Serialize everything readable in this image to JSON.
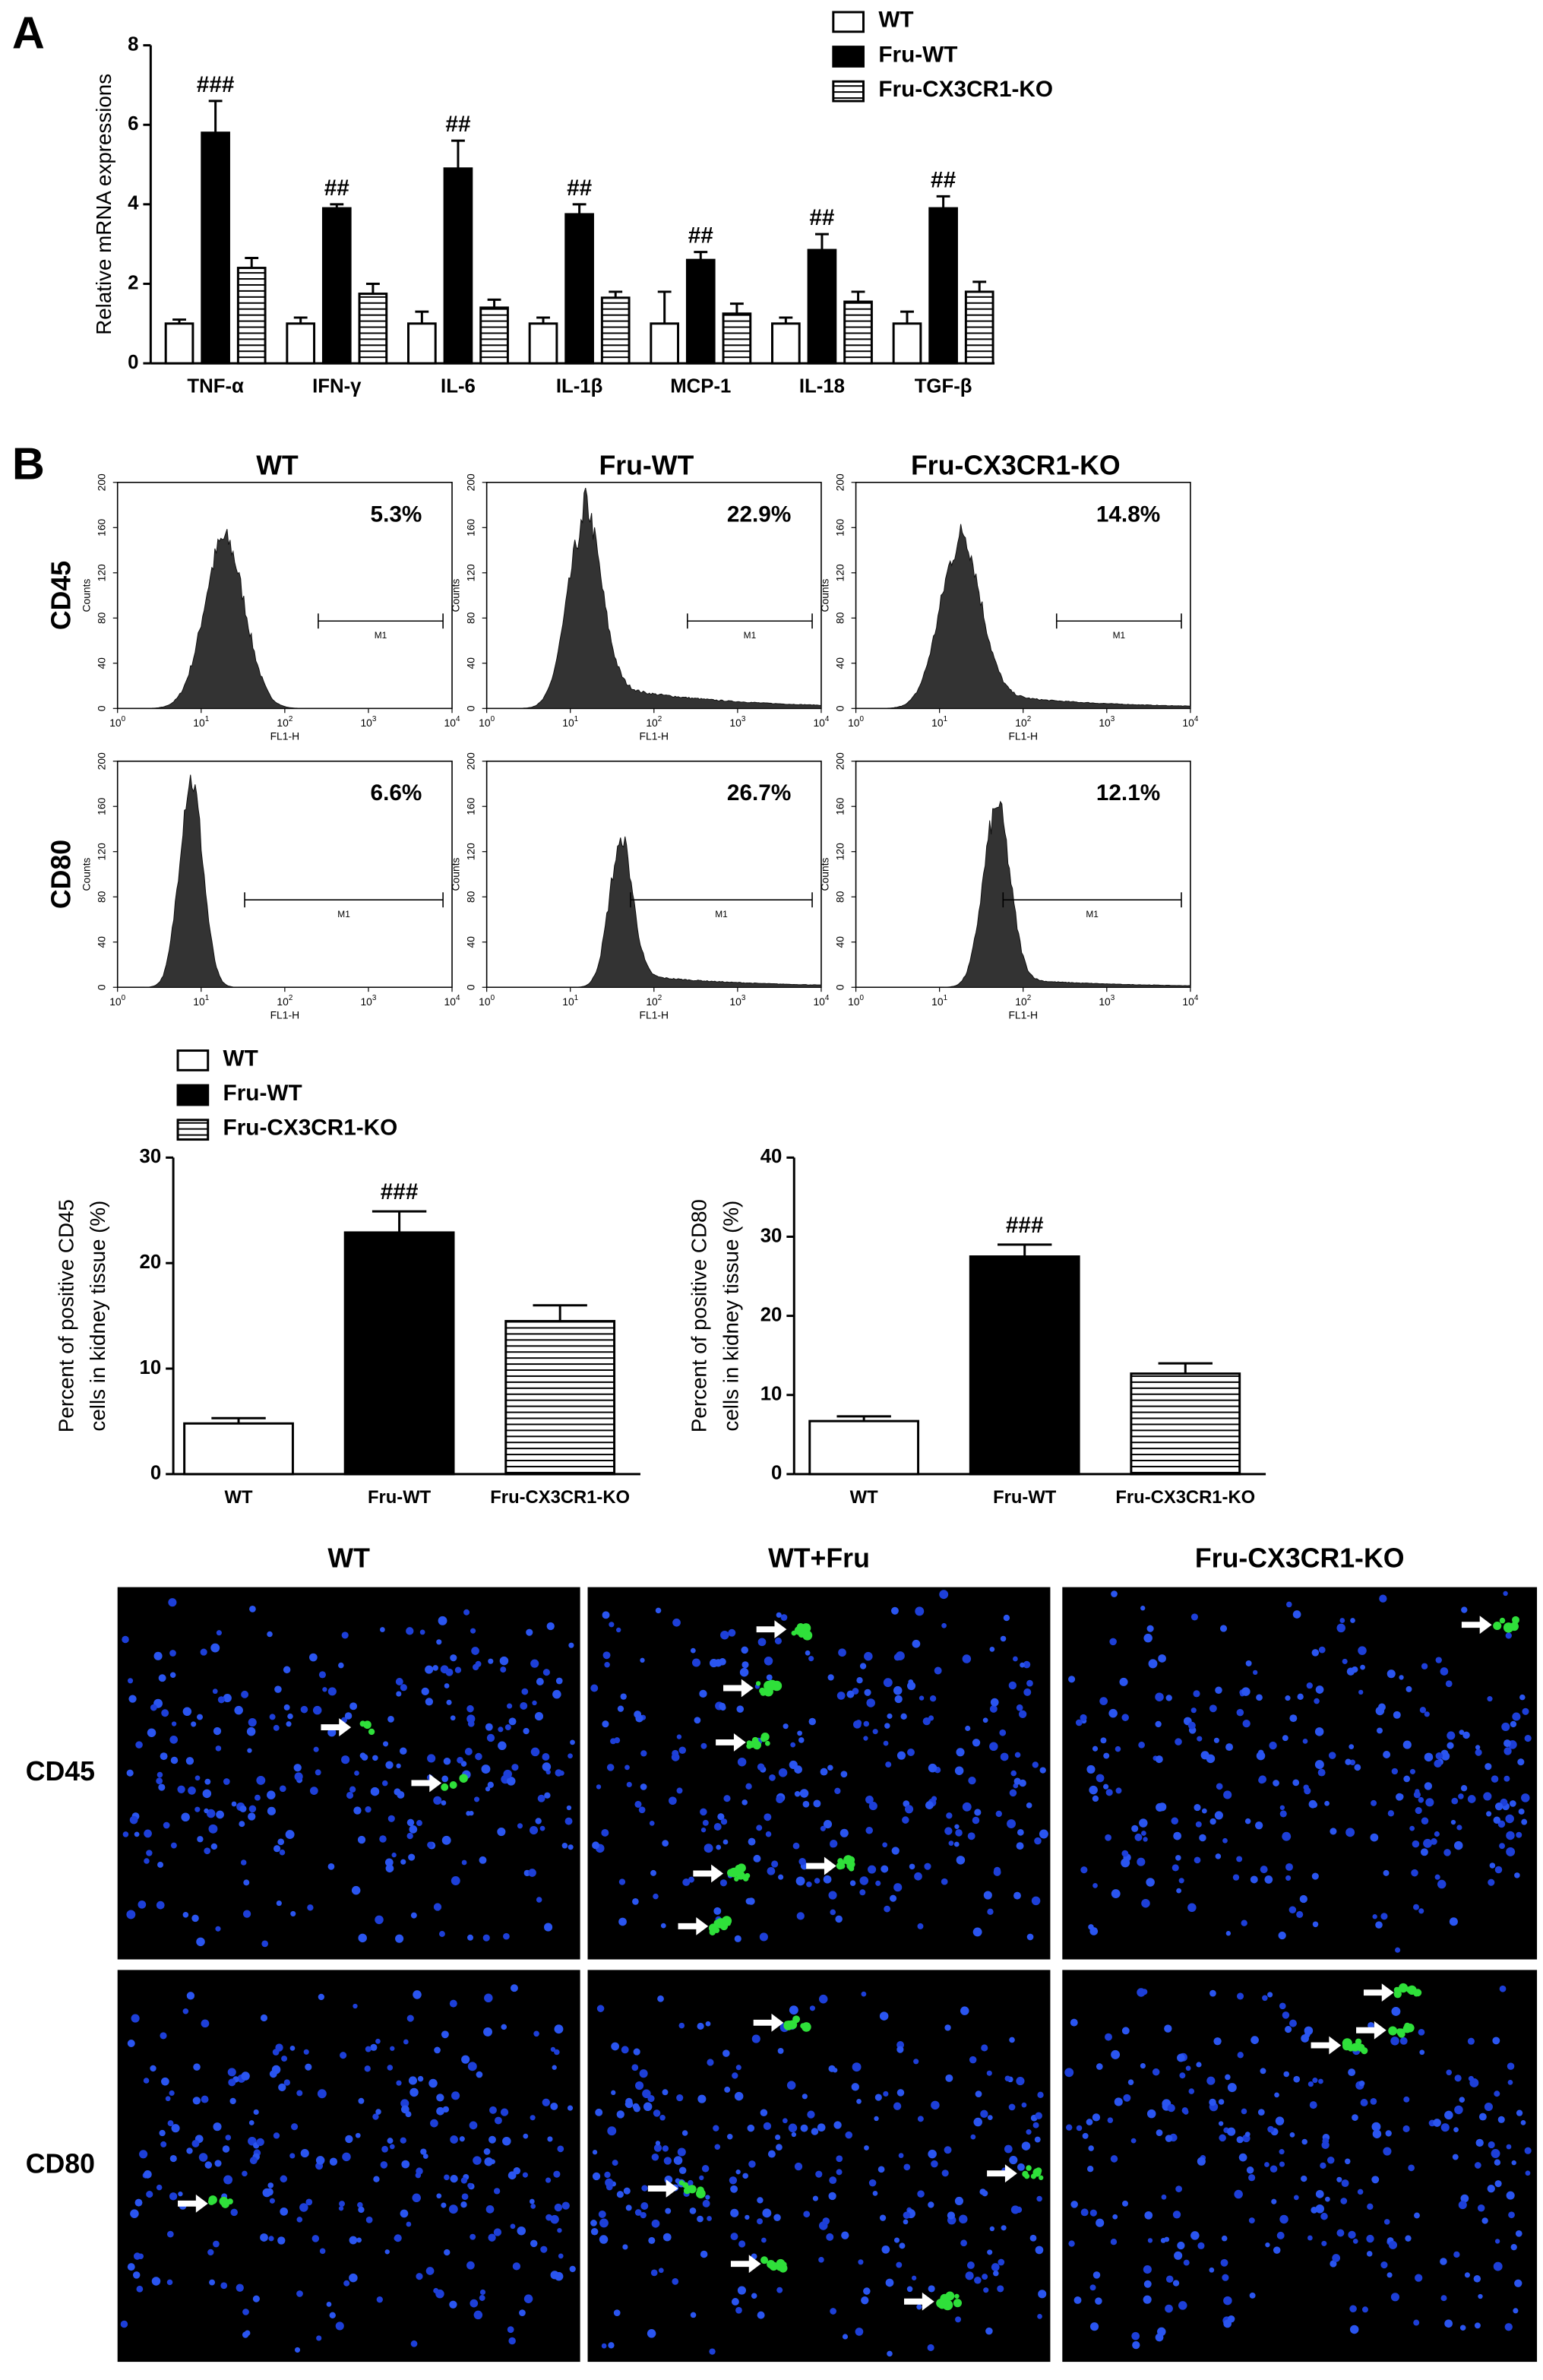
{
  "panel_labels": [
    "A",
    "B"
  ],
  "chart_data": [
    {
      "type": "grouped-bar",
      "ylabel": "Relative mRNA expressions",
      "categories": [
        "TNF-α",
        "IFN-γ",
        "IL-6",
        "IL-1β",
        "MCP-1",
        "IL-18",
        "TGF-β"
      ],
      "series": [
        {
          "name": "WT",
          "color": "#ffffff",
          "hatch": false,
          "values": [
            1.0,
            1.0,
            1.0,
            1.0,
            1.0,
            1.0,
            1.0
          ],
          "errors": [
            0.1,
            0.15,
            0.3,
            0.15,
            0.8,
            0.15,
            0.3
          ]
        },
        {
          "name": "Fru-WT",
          "color": "#000000",
          "hatch": false,
          "values": [
            5.8,
            3.9,
            4.9,
            3.75,
            2.6,
            2.85,
            3.9
          ],
          "errors": [
            0.8,
            0.1,
            0.7,
            0.25,
            0.2,
            0.4,
            0.3
          ]
        },
        {
          "name": "Fru-CX3CR1-KO",
          "color": "#ffffff",
          "hatch": true,
          "values": [
            2.4,
            1.75,
            1.4,
            1.65,
            1.25,
            1.55,
            1.8
          ],
          "errors": [
            0.25,
            0.25,
            0.2,
            0.15,
            0.25,
            0.25,
            0.25
          ]
        }
      ],
      "annotations": [
        "###",
        "##",
        "##",
        "##",
        "##",
        "##",
        "##"
      ],
      "annotation_series": 1,
      "ylim": [
        0,
        8
      ],
      "yticks": [
        0,
        2,
        4,
        6,
        8
      ],
      "legend": "top-right"
    },
    {
      "type": "bar",
      "ylabel": [
        "Percent of positive CD45",
        "cells in kidney tissue (%)"
      ],
      "categories": [
        "WT",
        "Fru-WT",
        "Fru-CX3CR1-KO"
      ],
      "values": [
        4.8,
        22.9,
        14.5
      ],
      "errors": [
        0.5,
        2.0,
        1.5
      ],
      "colors": [
        "#ffffff",
        "#000000",
        "#ffffff"
      ],
      "hatch": [
        false,
        false,
        true
      ],
      "annotations": [
        null,
        "###",
        null
      ],
      "legend": [
        "WT",
        "Fru-WT",
        "Fru-CX3CR1-KO"
      ],
      "ylim": [
        0,
        30
      ],
      "yticks": [
        0,
        10,
        20,
        30
      ]
    },
    {
      "type": "bar",
      "ylabel": [
        "Percent of positive CD80",
        "cells in kidney tissue (%)"
      ],
      "categories": [
        "WT",
        "Fru-WT",
        "Fru-CX3CR1-KO"
      ],
      "values": [
        6.7,
        27.5,
        12.7
      ],
      "errors": [
        0.6,
        1.5,
        1.3
      ],
      "colors": [
        "#ffffff",
        "#000000",
        "#ffffff"
      ],
      "hatch": [
        false,
        false,
        true
      ],
      "annotations": [
        null,
        "###",
        null
      ],
      "ylim": [
        0,
        40
      ],
      "yticks": [
        0,
        10,
        20,
        30,
        40
      ]
    }
  ],
  "flow": {
    "columns": [
      "WT",
      "Fru-WT",
      "Fru-CX3CR1-KO"
    ],
    "rows": [
      "CD45",
      "CD80"
    ],
    "percentages": [
      [
        "5.3%",
        "22.9%",
        "14.8%"
      ],
      [
        "6.6%",
        "26.7%",
        "12.1%"
      ]
    ],
    "gate_label": "M1",
    "xlabel": "FL1-H",
    "ylabel": "Counts",
    "yticks": [
      0,
      40,
      80,
      120,
      160,
      200
    ],
    "xtick_base": "10",
    "xtick_exponents": [
      0,
      1,
      2,
      3,
      4
    ]
  },
  "microscopy": {
    "columns": [
      "WT",
      "WT+Fru",
      "Fru-CX3CR1-KO"
    ],
    "rows": [
      "CD45",
      "CD80"
    ]
  }
}
